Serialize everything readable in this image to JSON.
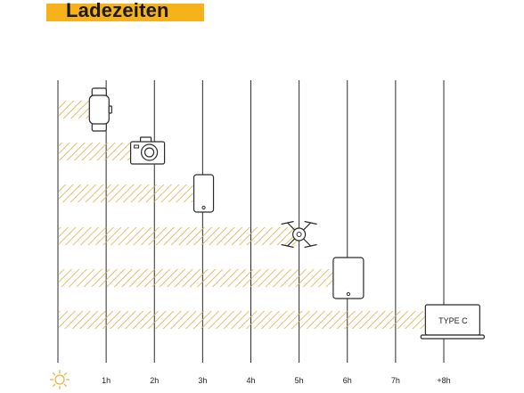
{
  "title": "Ladezeiten",
  "colors": {
    "accent": "#f5b21a",
    "hatch": "#d9b247",
    "line": "#2b2b2b",
    "sun": "#e8b23a"
  },
  "chart_data": {
    "type": "bar",
    "orientation": "horizontal",
    "title": "Ladezeiten",
    "xlabel": "",
    "ylabel": "",
    "x_tick_labels": [
      "1h",
      "2h",
      "3h",
      "4h",
      "5h",
      "6h",
      "7h",
      "+8h"
    ],
    "x_axis_icon": "sun-icon",
    "xlim": [
      0,
      8
    ],
    "grid": true,
    "categories": [
      "smartwatch-icon",
      "camera-icon",
      "smartphone-icon",
      "drone-icon",
      "tablet-icon",
      "laptop-icon"
    ],
    "values": [
      0.8,
      1.6,
      2.8,
      5.0,
      5.8,
      7.6
    ],
    "category_text": [
      "",
      "",
      "",
      "",
      "",
      "TYPE C"
    ]
  }
}
